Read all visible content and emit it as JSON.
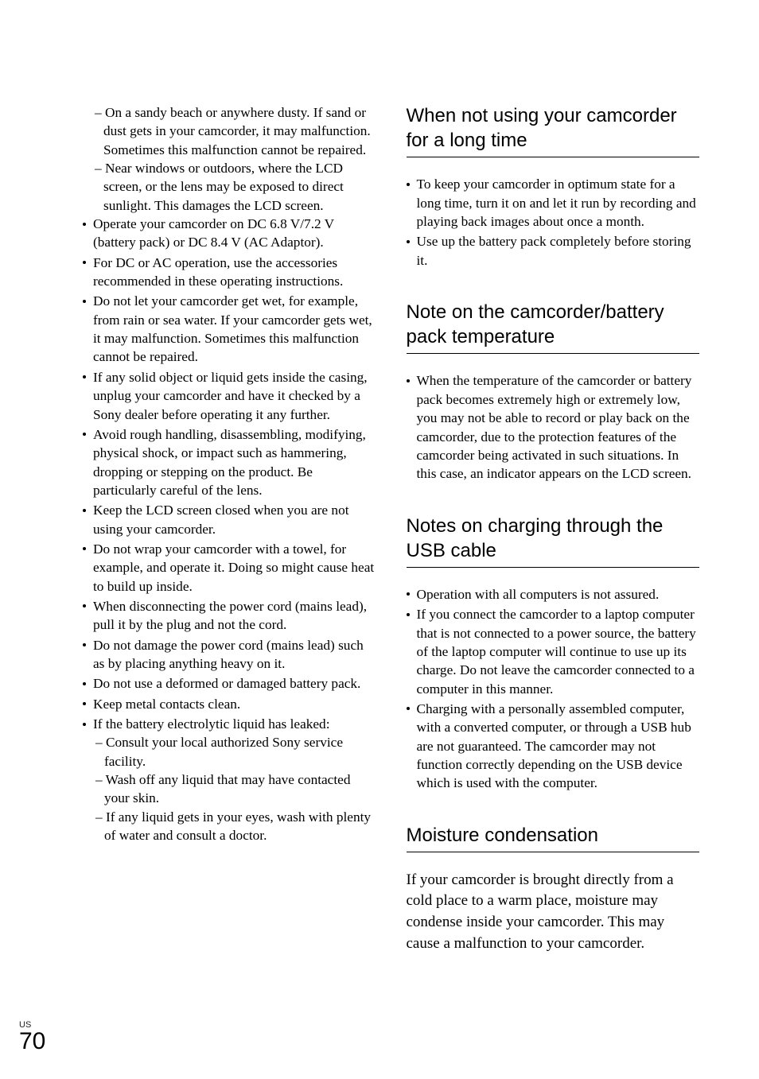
{
  "left": {
    "pre_subs": [
      "– On a sandy beach or anywhere dusty. If sand or dust gets in your camcorder, it may malfunction. Sometimes this malfunction cannot be repaired.",
      "– Near windows or outdoors, where the LCD screen, or the lens may be exposed to direct sunlight. This damages the LCD screen."
    ],
    "bullets": [
      "Operate your camcorder on DC 6.8 V/7.2 V (battery pack) or DC 8.4 V (AC Adaptor).",
      "For DC or AC operation, use the accessories recommended in these operating instructions.",
      "Do not let your camcorder get wet, for example, from rain or sea water. If your camcorder gets wet, it may malfunction. Sometimes this malfunction cannot be repaired.",
      "If any solid object or liquid gets inside the casing, unplug your camcorder and have it checked by a Sony dealer before operating it any further.",
      "Avoid rough handling, disassembling, modifying, physical shock, or impact such as hammering, dropping or stepping on the product. Be particularly careful of the lens.",
      "Keep the LCD screen closed when you are not using your camcorder.",
      "Do not wrap your camcorder with a towel, for example, and operate it. Doing so might cause heat to build up inside.",
      "When disconnecting the power cord (mains lead), pull it by the plug and not the cord.",
      "Do not damage the power cord (mains lead) such as by placing anything heavy on it.",
      "Do not use a deformed or damaged battery pack.",
      "Keep metal contacts clean.",
      "If the battery electrolytic liquid has leaked:"
    ],
    "tail_subs": [
      "– Consult your local authorized Sony service facility.",
      "– Wash off any liquid that may have contacted your skin.",
      "– If any liquid gets in your eyes, wash with plenty of water and consult a doctor."
    ]
  },
  "right": {
    "h1": "When not using your camcorder for a long time",
    "s1": [
      "To keep your camcorder in optimum state for a long time, turn it on and let it run by recording and playing back images about once a month.",
      "Use up the battery pack completely before storing it."
    ],
    "h2": "Note on the camcorder/battery pack temperature",
    "s2": [
      "When the temperature of the camcorder or battery pack becomes extremely high or extremely low, you may not be able to record or play back on the camcorder, due to the protection features of the camcorder being activated in such situations. In this case, an indicator appears on the LCD screen."
    ],
    "h3": "Notes on charging through the USB cable",
    "s3": [
      "Operation with all computers is not assured.",
      "If you connect the camcorder to a laptop computer that is not connected to a power source, the battery of the laptop computer will continue to use up its charge. Do not leave the camcorder connected to a computer in this manner.",
      "Charging with a personally assembled computer, with a converted computer, or through a USB hub are not guaranteed. The camcorder may not function correctly depending on the USB device which is used with the computer."
    ],
    "h4": "Moisture condensation",
    "p4": "If your camcorder is brought directly from a cold place to a warm place, moisture may condense inside your camcorder. This may cause a malfunction to your camcorder."
  },
  "footer": {
    "region": "US",
    "page": "70"
  }
}
